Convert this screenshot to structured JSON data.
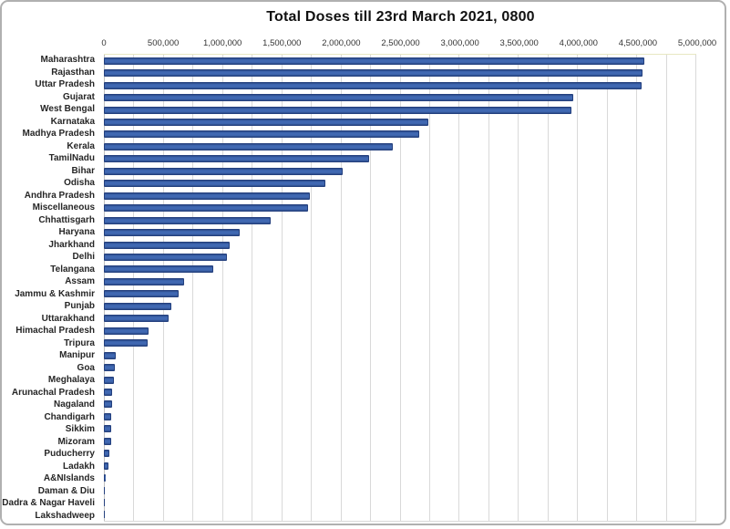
{
  "chart_data": {
    "type": "bar",
    "orientation": "horizontal",
    "title": "Total Doses till 23rd March 2021, 0800",
    "xlabel": "",
    "ylabel": "",
    "xlim": [
      0,
      5000000
    ],
    "x_tick_step": 500000,
    "x_gridline_step": 250000,
    "grid": true,
    "legend": "none",
    "x_ticks": [
      {
        "value": 0,
        "label": "0"
      },
      {
        "value": 500000,
        "label": "500,000"
      },
      {
        "value": 1000000,
        "label": "1,000,000"
      },
      {
        "value": 1500000,
        "label": "1,500,000"
      },
      {
        "value": 2000000,
        "label": "2,000,000"
      },
      {
        "value": 2500000,
        "label": "2,500,000"
      },
      {
        "value": 3000000,
        "label": "3,000,000"
      },
      {
        "value": 3500000,
        "label": "3,500,000"
      },
      {
        "value": 4000000,
        "label": "4,000,000"
      },
      {
        "value": 4500000,
        "label": "4,500,000"
      },
      {
        "value": 5000000,
        "label": "5,000,000"
      }
    ],
    "categories": [
      "Maharashtra",
      "Rajasthan",
      "Uttar Pradesh",
      "Gujarat",
      "West Bengal",
      "Karnataka",
      "Madhya Pradesh",
      "Kerala",
      "TamilNadu",
      "Bihar",
      "Odisha",
      "Andhra Pradesh",
      "Miscellaneous",
      "Chhattisgarh",
      "Haryana",
      "Jharkhand",
      "Delhi",
      "Telangana",
      "Assam",
      "Jammu & Kashmir",
      "Punjab",
      "Uttarakhand",
      "Himachal Pradesh",
      "Tripura",
      "Manipur",
      "Goa",
      "Meghalaya",
      "Arunachal Pradesh",
      "Nagaland",
      "Chandigarh",
      "Sikkim",
      "Mizoram",
      "Puducherry",
      "Ladakh",
      "A&NIslands",
      "Daman & Diu",
      "Dadra & Nagar Haveli",
      "Lakshadweep"
    ],
    "values": [
      4570000,
      4555000,
      4545000,
      3970000,
      3950000,
      2740000,
      2665000,
      2440000,
      2240000,
      2020000,
      1870000,
      1740000,
      1725000,
      1410000,
      1150000,
      1060000,
      1040000,
      925000,
      675000,
      635000,
      570000,
      545000,
      380000,
      370000,
      100000,
      90000,
      85000,
      70000,
      68000,
      60000,
      60000,
      58000,
      45000,
      37000,
      15000,
      10000,
      10000,
      4000
    ],
    "colors": {
      "bar_fill": "#4068B2",
      "bar_edge": "#2B4A88",
      "bar_border": "#24407E",
      "gridline": "#D9D9D9",
      "zero_axis": "#BFBFBF",
      "plot_border": "#E8E8C2",
      "bottom_axis": "#D9D9D9",
      "title_color": "#111111",
      "tick_color": "#333333",
      "label_color": "#262626",
      "frame_border": "#B0B0B0"
    }
  }
}
